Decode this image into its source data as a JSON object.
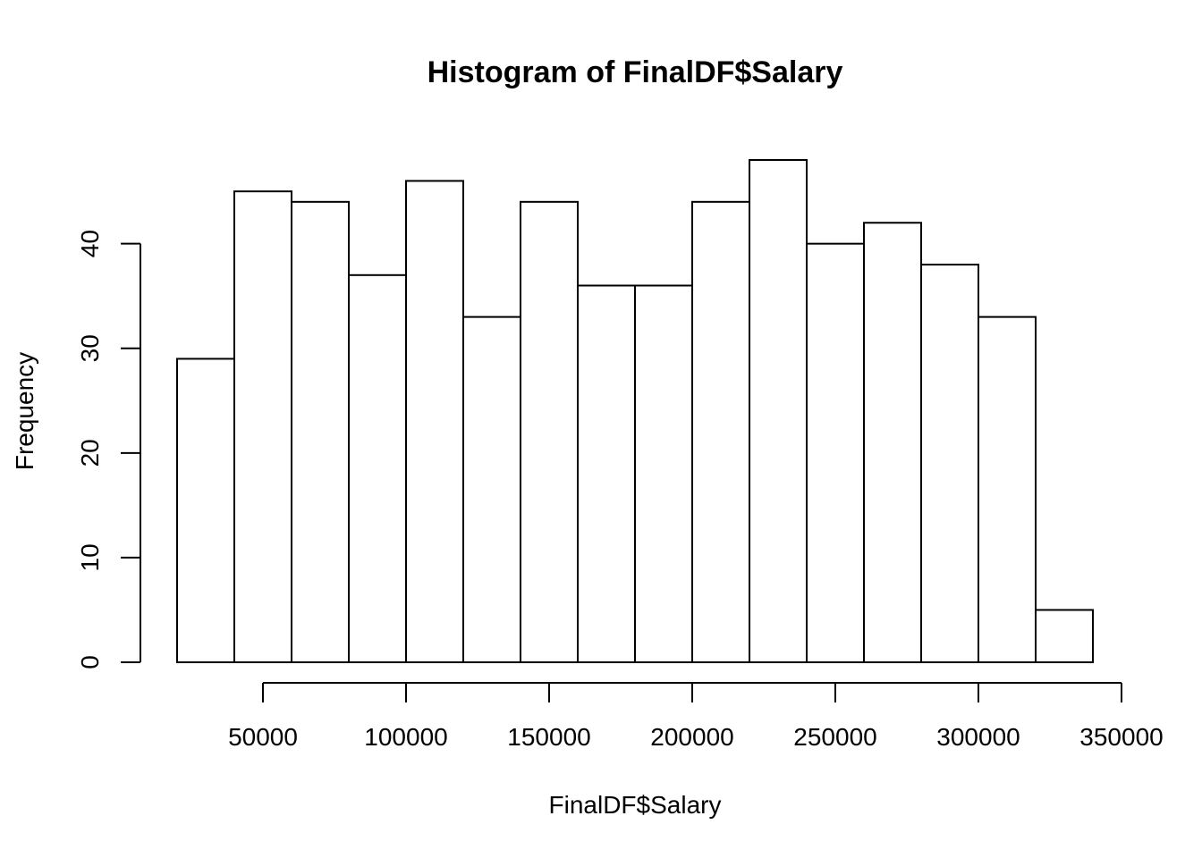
{
  "chart_data": {
    "type": "bar",
    "title": "Histogram of FinalDF$Salary",
    "xlabel": "FinalDF$Salary",
    "ylabel": "Frequency",
    "bins": [
      {
        "x0": 20000,
        "x1": 40000,
        "count": 29
      },
      {
        "x0": 40000,
        "x1": 60000,
        "count": 45
      },
      {
        "x0": 60000,
        "x1": 80000,
        "count": 44
      },
      {
        "x0": 80000,
        "x1": 100000,
        "count": 37
      },
      {
        "x0": 100000,
        "x1": 120000,
        "count": 46
      },
      {
        "x0": 120000,
        "x1": 140000,
        "count": 33
      },
      {
        "x0": 140000,
        "x1": 160000,
        "count": 44
      },
      {
        "x0": 160000,
        "x1": 180000,
        "count": 36
      },
      {
        "x0": 180000,
        "x1": 200000,
        "count": 36
      },
      {
        "x0": 200000,
        "x1": 220000,
        "count": 44
      },
      {
        "x0": 220000,
        "x1": 240000,
        "count": 48
      },
      {
        "x0": 240000,
        "x1": 260000,
        "count": 40
      },
      {
        "x0": 260000,
        "x1": 280000,
        "count": 42
      },
      {
        "x0": 280000,
        "x1": 300000,
        "count": 38
      },
      {
        "x0": 300000,
        "x1": 320000,
        "count": 33
      },
      {
        "x0": 320000,
        "x1": 340000,
        "count": 5
      }
    ],
    "xticks": [
      50000,
      100000,
      150000,
      200000,
      250000,
      300000,
      350000
    ],
    "xtick_labels": [
      "50000",
      "100000",
      "150000",
      "200000",
      "250000",
      "300000",
      "350000"
    ],
    "yticks": [
      0,
      10,
      20,
      30,
      40
    ],
    "ytick_labels": [
      "0",
      "10",
      "20",
      "30",
      "40"
    ],
    "xlim": [
      20000,
      340000
    ],
    "ylim": [
      0,
      48
    ],
    "grid": false,
    "legend": "none"
  }
}
